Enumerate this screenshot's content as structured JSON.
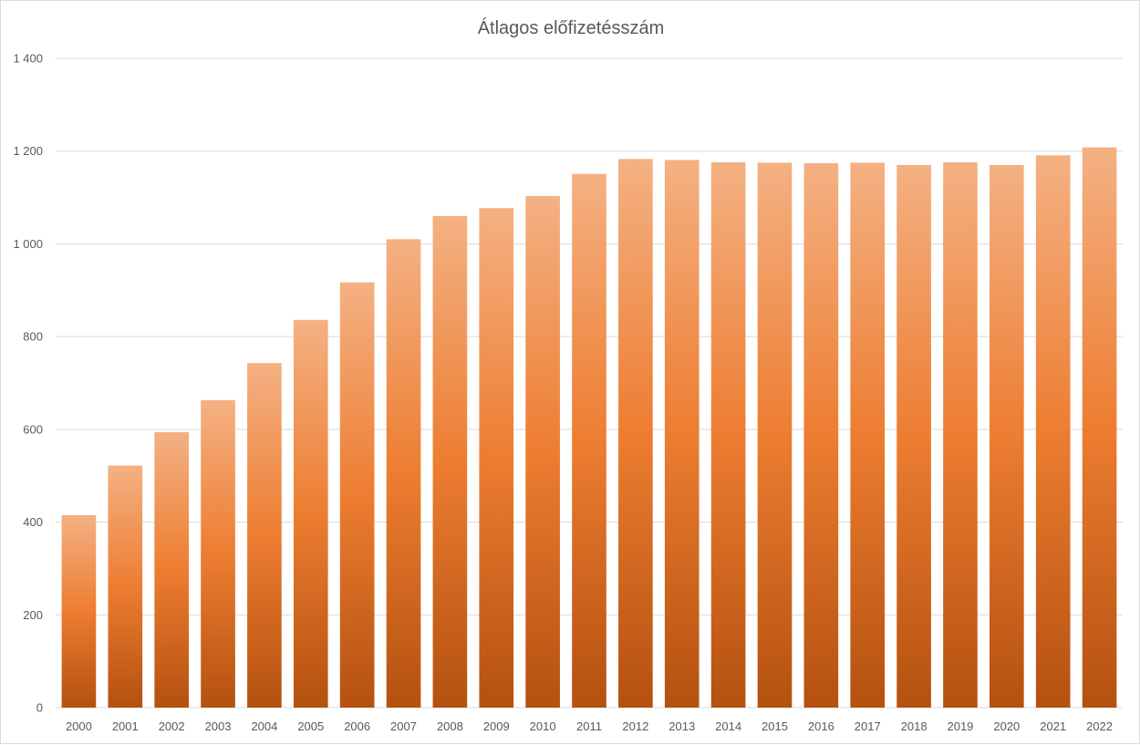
{
  "chart_data": {
    "type": "bar",
    "title": "Átlagos előfizetésszám",
    "xlabel": "",
    "ylabel": "",
    "categories": [
      "2000",
      "2001",
      "2002",
      "2003",
      "2004",
      "2005",
      "2006",
      "2007",
      "2008",
      "2009",
      "2010",
      "2011",
      "2012",
      "2013",
      "2014",
      "2015",
      "2016",
      "2017",
      "2018",
      "2019",
      "2020",
      "2021",
      "2022"
    ],
    "values": [
      415,
      522,
      594,
      663,
      743,
      836,
      917,
      1010,
      1060,
      1077,
      1103,
      1151,
      1183,
      1181,
      1176,
      1175,
      1174,
      1175,
      1170,
      1176,
      1170,
      1191,
      1208
    ],
    "ylim": [
      0,
      1400
    ],
    "yticks": [
      0,
      200,
      400,
      600,
      800,
      1000,
      1200,
      1400
    ],
    "ytick_labels": [
      "0",
      "200",
      "400",
      "600",
      "800",
      "1 000",
      "1 200",
      "1 400"
    ],
    "grid": true,
    "legend": "none",
    "colors": {
      "bar_top": "#f4b183",
      "bar_mid": "#ed7d31",
      "bar_bottom": "#b4510f",
      "grid": "#d9d9d9",
      "text": "#595959"
    }
  }
}
